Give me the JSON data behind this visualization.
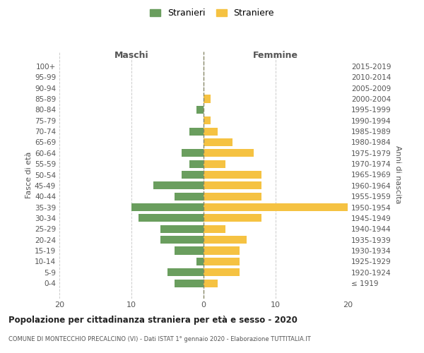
{
  "age_groups": [
    "100+",
    "95-99",
    "90-94",
    "85-89",
    "80-84",
    "75-79",
    "70-74",
    "65-69",
    "60-64",
    "55-59",
    "50-54",
    "45-49",
    "40-44",
    "35-39",
    "30-34",
    "25-29",
    "20-24",
    "15-19",
    "10-14",
    "5-9",
    "0-4"
  ],
  "birth_years": [
    "≤ 1919",
    "1920-1924",
    "1925-1929",
    "1930-1934",
    "1935-1939",
    "1940-1944",
    "1945-1949",
    "1950-1954",
    "1955-1959",
    "1960-1964",
    "1965-1969",
    "1970-1974",
    "1975-1979",
    "1980-1984",
    "1985-1989",
    "1990-1994",
    "1995-1999",
    "2000-2004",
    "2005-2009",
    "2010-2014",
    "2015-2019"
  ],
  "maschi": [
    0,
    0,
    0,
    0,
    1,
    0,
    2,
    0,
    3,
    2,
    3,
    7,
    4,
    10,
    9,
    6,
    6,
    4,
    1,
    5,
    4
  ],
  "femmine": [
    0,
    0,
    0,
    1,
    0,
    1,
    2,
    4,
    7,
    3,
    8,
    8,
    8,
    20,
    8,
    3,
    6,
    5,
    5,
    5,
    2
  ],
  "male_color": "#6a9e5e",
  "female_color": "#f5c242",
  "title": "Popolazione per cittadinanza straniera per età e sesso - 2020",
  "subtitle": "COMUNE DI MONTECCHIO PRECALCINO (VI) - Dati ISTAT 1° gennaio 2020 - Elaborazione TUTTITALIA.IT",
  "xlabel_left": "Maschi",
  "xlabel_right": "Femmine",
  "ylabel_left": "Fasce di età",
  "ylabel_right": "Anni di nascita",
  "xlim": 20,
  "legend_stranieri": "Stranieri",
  "legend_straniere": "Straniere",
  "background_color": "#ffffff",
  "grid_color": "#cccccc"
}
